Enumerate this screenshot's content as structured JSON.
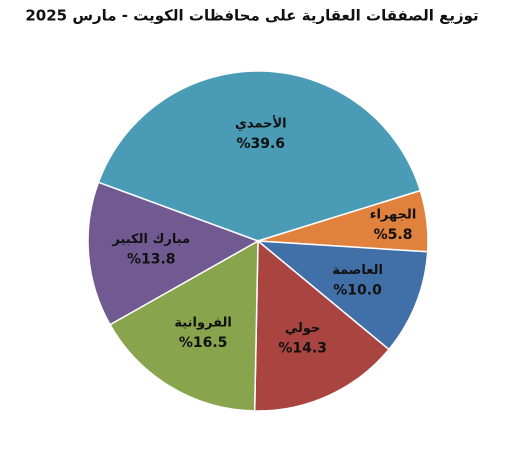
{
  "chart_data": {
    "type": "pie",
    "title": "توزيع الصفقات العقارية على محافظات الكويت - مارس 2025",
    "categories": [
      "الأحمدي",
      "الجهراء",
      "العاصمة",
      "حولي",
      "الفروانية",
      "مبارك الكبير"
    ],
    "values": [
      39.6,
      5.8,
      10.0,
      14.3,
      16.5,
      13.8
    ],
    "value_labels": [
      "%39.6",
      "%5.8",
      "%10.0",
      "%14.3",
      "%16.5",
      "%13.8"
    ],
    "colors": [
      "#4a9bb5",
      "#e0823d",
      "#4170a9",
      "#a94441",
      "#88a44c",
      "#715a92"
    ]
  }
}
